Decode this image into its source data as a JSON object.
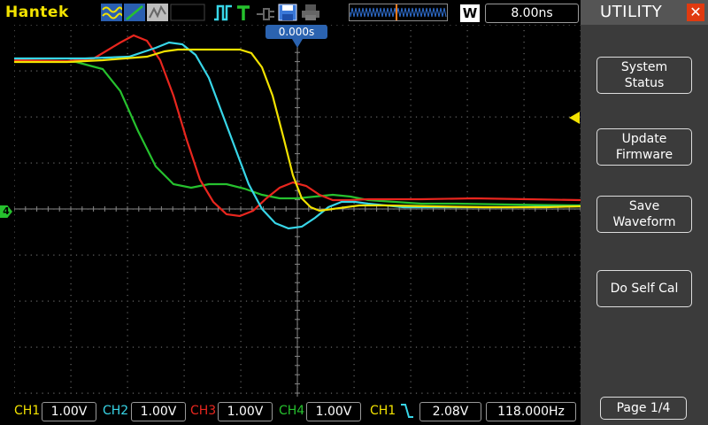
{
  "brand": "Hantek",
  "toolbar": {
    "icons": [
      "wave-display-icon",
      "ramp-icon",
      "persist-icon",
      "pulse-trigger-icon",
      "t-icon",
      "plug-icon",
      "save-disk-icon",
      "printer-icon"
    ],
    "memory_window": "memory-depth-bar",
    "w_label": "W",
    "timebase": "8.00ns",
    "trigger_position": "0.000s"
  },
  "menu": {
    "title": "UTILITY",
    "close_symbol": "✕",
    "buttons": [
      {
        "line1": "System",
        "line2": "Status"
      },
      {
        "line1": "Update",
        "line2": "Firmware"
      },
      {
        "line1": "Save",
        "line2": "Waveform"
      },
      {
        "line1": "Do Self Cal",
        "line2": ""
      }
    ],
    "page": "Page 1/4"
  },
  "channels": [
    {
      "label": "CH1",
      "scale": "1.00V",
      "color": "#f2e200"
    },
    {
      "label": "CH2",
      "scale": "1.00V",
      "color": "#38d6e8"
    },
    {
      "label": "CH3",
      "scale": "1.00V",
      "color": "#e8261e"
    },
    {
      "label": "CH4",
      "scale": "1.00V",
      "color": "#26c12e"
    }
  ],
  "trigger": {
    "source": "CH1",
    "slope_icon": "falling-edge-icon",
    "level": "2.08V",
    "frequency": "118.000Hz"
  },
  "ground_marker": "4"
}
